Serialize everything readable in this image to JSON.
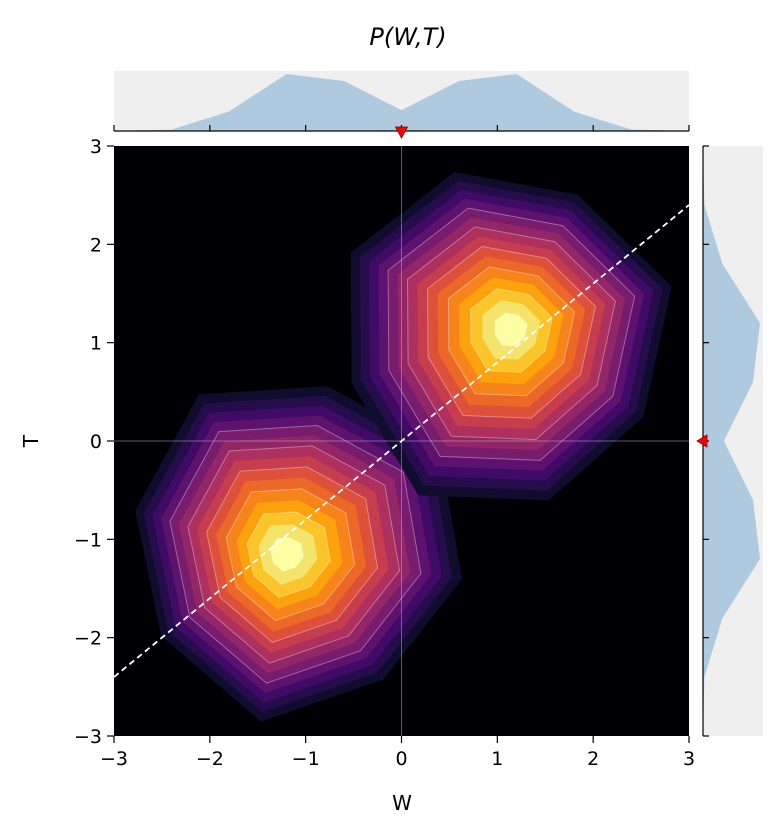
{
  "chart_data": {
    "type": "contour",
    "title": "P(W,T)",
    "xlabel": "W",
    "ylabel": "T",
    "xlim": [
      -3,
      3
    ],
    "ylim": [
      -3,
      3
    ],
    "x_ticks": [
      -3,
      -2,
      -1,
      0,
      1,
      2,
      3
    ],
    "y_ticks": [
      -3,
      -2,
      -1,
      0,
      1,
      2,
      3
    ],
    "x_tick_labels": [
      "−3",
      "−2",
      "−1",
      "0",
      "1",
      "2",
      "3"
    ],
    "y_tick_labels": [
      "−3",
      "−2",
      "−1",
      "0",
      "1",
      "2",
      "3"
    ],
    "colormap": "inferno",
    "background_color": "#000004",
    "components": [
      {
        "center": [
          -1.1,
          -1.05
        ],
        "sigma": 0.6
      },
      {
        "center": [
          1.05,
          1.05
        ],
        "sigma": 0.6
      }
    ],
    "reference_lines": [
      {
        "kind": "vertical",
        "x": 0
      },
      {
        "kind": "horizontal",
        "y": 0
      }
    ],
    "fit_line": {
      "slope": 0.8,
      "intercept": 0,
      "style": "dashed",
      "color": "#ffffff"
    },
    "marginal_w": {
      "x": [
        -3,
        -2.4,
        -1.8,
        -1.2,
        -0.6,
        0,
        0.6,
        1.2,
        1.8,
        2.4,
        3
      ],
      "density": [
        0.0,
        0.02,
        0.28,
        0.82,
        0.72,
        0.3,
        0.72,
        0.82,
        0.28,
        0.02,
        0.0
      ],
      "fill": "#afcade",
      "background": "#efefef",
      "marker": {
        "at": 0,
        "color": "#ff0000"
      }
    },
    "marginal_t": {
      "y": [
        -3,
        -2.4,
        -1.8,
        -1.2,
        -0.6,
        0,
        0.6,
        1.2,
        1.8,
        2.4,
        3
      ],
      "density": [
        0.0,
        0.02,
        0.28,
        0.82,
        0.72,
        0.3,
        0.72,
        0.82,
        0.28,
        0.02,
        0.0
      ],
      "fill": "#afcade",
      "background": "#efefef",
      "marker": {
        "at": 0,
        "color": "#ff0000"
      }
    }
  }
}
